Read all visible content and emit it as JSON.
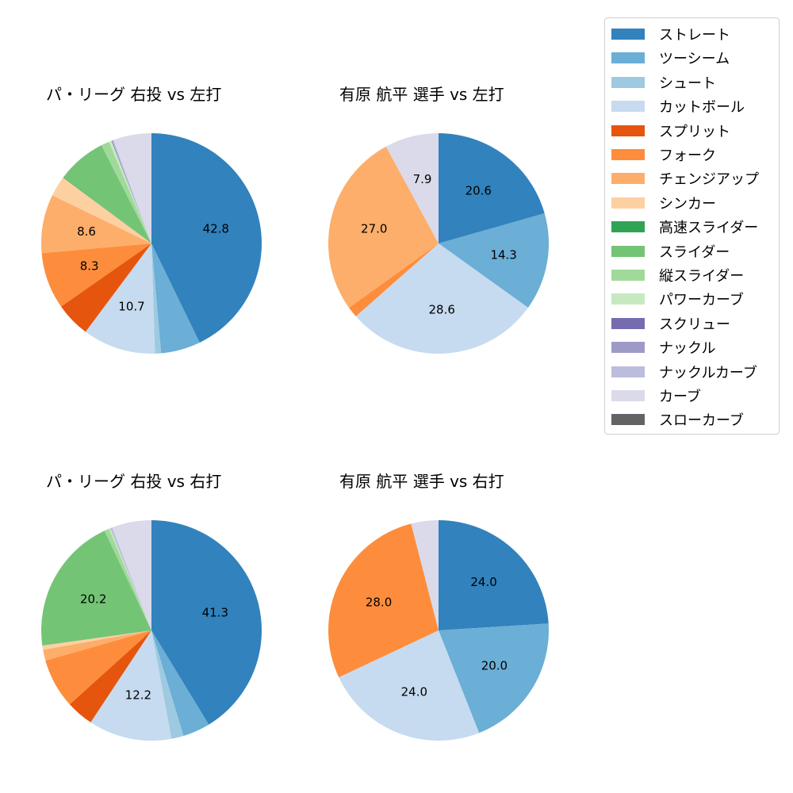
{
  "legend": {
    "items": [
      {
        "label": "ストレート",
        "color": "#3182bd"
      },
      {
        "label": "ツーシーム",
        "color": "#6baed6"
      },
      {
        "label": "シュート",
        "color": "#9ecae1"
      },
      {
        "label": "カットボール",
        "color": "#c6dbef"
      },
      {
        "label": "スプリット",
        "color": "#e6550d"
      },
      {
        "label": "フォーク",
        "color": "#fd8d3c"
      },
      {
        "label": "チェンジアップ",
        "color": "#fdae6b"
      },
      {
        "label": "シンカー",
        "color": "#fdd0a2"
      },
      {
        "label": "高速スライダー",
        "color": "#31a354"
      },
      {
        "label": "スライダー",
        "color": "#74c476"
      },
      {
        "label": "縦スライダー",
        "color": "#a1d99b"
      },
      {
        "label": "パワーカーブ",
        "color": "#c7e9c0"
      },
      {
        "label": "スクリュー",
        "color": "#756bb1"
      },
      {
        "label": "ナックル",
        "color": "#9e9ac8"
      },
      {
        "label": "ナックルカーブ",
        "color": "#bcbddc"
      },
      {
        "label": "カーブ",
        "color": "#dadaeb"
      },
      {
        "label": "スローカーブ",
        "color": "#636363"
      }
    ]
  },
  "chart_data": [
    {
      "type": "pie",
      "title": "パ・リーグ 右投 vs 左打",
      "start_angle": 90,
      "direction": "clockwise",
      "label_threshold": 8,
      "slices": [
        {
          "name": "ストレート",
          "value": 42.8,
          "color": "#3182bd"
        },
        {
          "name": "ツーシーム",
          "value": 5.8,
          "color": "#6baed6"
        },
        {
          "name": "シュート",
          "value": 0.9,
          "color": "#9ecae1"
        },
        {
          "name": "カットボール",
          "value": 10.7,
          "color": "#c6dbef"
        },
        {
          "name": "スプリット",
          "value": 5.1,
          "color": "#e6550d"
        },
        {
          "name": "フォーク",
          "value": 8.3,
          "color": "#fd8d3c"
        },
        {
          "name": "チェンジアップ",
          "value": 8.6,
          "color": "#fdae6b"
        },
        {
          "name": "シンカー",
          "value": 3.0,
          "color": "#fdd0a2"
        },
        {
          "name": "高速スライダー",
          "value": 0.1,
          "color": "#31a354"
        },
        {
          "name": "スライダー",
          "value": 7.2,
          "color": "#74c476"
        },
        {
          "name": "縦スライダー",
          "value": 1.2,
          "color": "#a1d99b"
        },
        {
          "name": "パワーカーブ",
          "value": 0.4,
          "color": "#c7e9c0"
        },
        {
          "name": "スクリュー",
          "value": 0.1,
          "color": "#756bb1"
        },
        {
          "name": "ナックルカーブ",
          "value": 0.2,
          "color": "#bcbddc"
        },
        {
          "name": "カーブ",
          "value": 5.6,
          "color": "#dadaeb"
        }
      ]
    },
    {
      "type": "pie",
      "title": "有原 航平 選手 vs 左打",
      "start_angle": 90,
      "direction": "clockwise",
      "label_threshold": 5,
      "slices": [
        {
          "name": "ストレート",
          "value": 20.6,
          "color": "#3182bd"
        },
        {
          "name": "ツーシーム",
          "value": 14.3,
          "color": "#6baed6"
        },
        {
          "name": "カットボール",
          "value": 28.6,
          "color": "#c6dbef"
        },
        {
          "name": "フォーク",
          "value": 1.6,
          "color": "#fd8d3c"
        },
        {
          "name": "チェンジアップ",
          "value": 27.0,
          "color": "#fdae6b"
        },
        {
          "name": "カーブ",
          "value": 7.9,
          "color": "#dadaeb"
        }
      ]
    },
    {
      "type": "pie",
      "title": "パ・リーグ 右投 vs 右打",
      "start_angle": 90,
      "direction": "clockwise",
      "label_threshold": 10,
      "slices": [
        {
          "name": "ストレート",
          "value": 41.3,
          "color": "#3182bd"
        },
        {
          "name": "ツーシーム",
          "value": 4.0,
          "color": "#6baed6"
        },
        {
          "name": "シュート",
          "value": 1.8,
          "color": "#9ecae1"
        },
        {
          "name": "カットボール",
          "value": 12.2,
          "color": "#c6dbef"
        },
        {
          "name": "スプリット",
          "value": 4.0,
          "color": "#e6550d"
        },
        {
          "name": "フォーク",
          "value": 7.3,
          "color": "#fd8d3c"
        },
        {
          "name": "チェンジアップ",
          "value": 1.6,
          "color": "#fdae6b"
        },
        {
          "name": "シンカー",
          "value": 0.6,
          "color": "#fdd0a2"
        },
        {
          "name": "スライダー",
          "value": 20.2,
          "color": "#74c476"
        },
        {
          "name": "縦スライダー",
          "value": 0.7,
          "color": "#a1d99b"
        },
        {
          "name": "パワーカーブ",
          "value": 0.2,
          "color": "#c7e9c0"
        },
        {
          "name": "ナックルカーブ",
          "value": 0.3,
          "color": "#bcbddc"
        },
        {
          "name": "カーブ",
          "value": 5.8,
          "color": "#dadaeb"
        }
      ]
    },
    {
      "type": "pie",
      "title": "有原 航平 選手 vs 右打",
      "start_angle": 90,
      "direction": "clockwise",
      "label_threshold": 5,
      "slices": [
        {
          "name": "ストレート",
          "value": 24.0,
          "color": "#3182bd"
        },
        {
          "name": "ツーシーム",
          "value": 20.0,
          "color": "#6baed6"
        },
        {
          "name": "カットボール",
          "value": 24.0,
          "color": "#c6dbef"
        },
        {
          "name": "フォーク",
          "value": 28.0,
          "color": "#fd8d3c"
        },
        {
          "name": "カーブ",
          "value": 4.0,
          "color": "#dadaeb"
        }
      ]
    }
  ]
}
